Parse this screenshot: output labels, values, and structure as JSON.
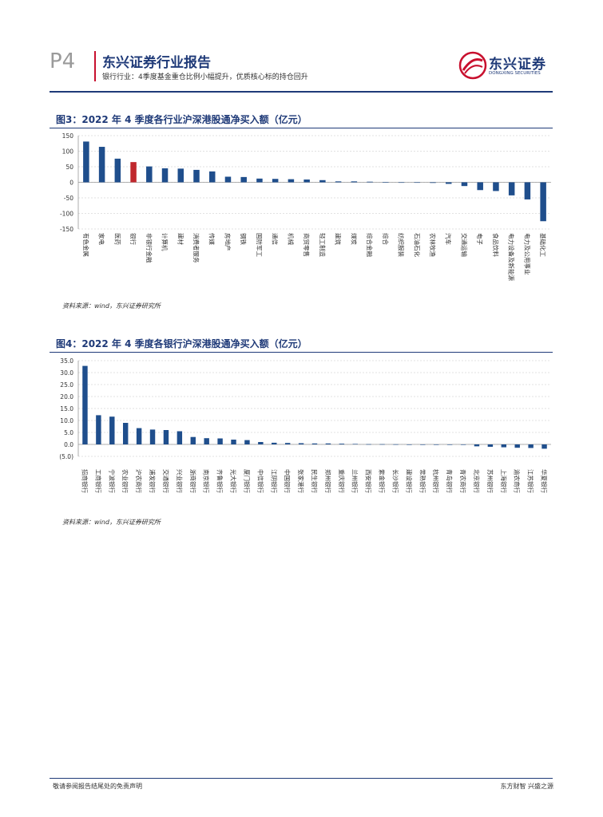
{
  "header": {
    "page_number": "P4",
    "report_title": "东兴证券行业报告",
    "subtitle": "银行行业：4季度基金重仓比例小幅提升，优质核心标的持仓回升",
    "logo_name": "东兴证券",
    "logo_en": "DONGXING SECURITIES"
  },
  "figure3": {
    "title": "图3：2022 年 4 季度各行业沪深港股通净买入额（亿元）",
    "source": "资料来源：wind，东兴证券研究所"
  },
  "figure4": {
    "title": "图4：2022 年 4 季度各银行沪深港股通净买入额（亿元）",
    "source": "资料来源：wind，东兴证券研究所"
  },
  "footer": {
    "left": "敬请参阅报告结尾处的免责声明",
    "right": "东方财智 兴盛之源"
  },
  "colors": {
    "bar": "#1f4e8c",
    "highlight": "#c0282d",
    "brand": "#1f3a78"
  },
  "chart_data": [
    {
      "type": "bar",
      "title": "2022 年 4 季度各行业沪深港股通净买入额（亿元）",
      "ylim": [
        -150,
        150
      ],
      "yticks": [
        -150,
        -100,
        -50,
        0,
        50,
        100,
        150
      ],
      "ytick_labels": [
        "-150",
        "-100",
        "-50",
        "0",
        "50",
        "100",
        "150"
      ],
      "highlight_category": "银行",
      "categories": [
        "有色金属",
        "家电",
        "医药",
        "银行",
        "非银行金融",
        "计算机",
        "建材",
        "消费者服务",
        "传媒",
        "房地产",
        "钢铁",
        "国防军工",
        "通信",
        "机械",
        "商贸零售",
        "轻工制造",
        "建筑",
        "煤炭",
        "综合金融",
        "综合",
        "纺织服装",
        "石油石化",
        "农林牧渔",
        "汽车",
        "交通运输",
        "电子",
        "食品饮料",
        "电力设备及新能源",
        "电力及公用事业",
        "基础化工"
      ],
      "values": [
        131,
        114,
        76,
        65,
        51,
        45,
        44,
        40,
        35,
        18,
        17,
        12,
        11,
        10,
        9,
        7,
        3,
        3,
        2,
        1,
        0,
        -1,
        -2,
        -5,
        -12,
        -25,
        -28,
        -42,
        -55,
        -125
      ]
    },
    {
      "type": "bar",
      "title": "2022 年 4 季度各银行沪深港股通净买入额（亿元）",
      "ylim": [
        -5,
        35
      ],
      "yticks": [
        -5,
        0,
        5,
        10,
        15,
        20,
        25,
        30,
        35
      ],
      "ytick_labels": [
        "(5.0)",
        "0.0",
        "5.0",
        "10.0",
        "15.0",
        "20.0",
        "25.0",
        "30.0",
        "35.0"
      ],
      "categories": [
        "招商银行",
        "工商银行",
        "宁波银行",
        "农业银行",
        "沪农商行",
        "浦发银行",
        "交通银行",
        "兴业银行",
        "浙商银行",
        "南京银行",
        "齐鲁银行",
        "光大银行",
        "厦门银行",
        "中信银行",
        "江阴银行",
        "中国银行",
        "张家港行",
        "民生银行",
        "郑州银行",
        "重庆银行",
        "兰州银行",
        "西安银行",
        "紫金银行",
        "长沙银行",
        "建设银行",
        "常熟银行",
        "杭州银行",
        "青岛银行",
        "青农商行",
        "北京银行",
        "苏州银行",
        "上海银行",
        "渝农商行",
        "江苏银行",
        "华夏银行"
      ],
      "values": [
        32.8,
        12.2,
        11.6,
        9.0,
        6.8,
        6.2,
        6.0,
        5.5,
        3.1,
        2.6,
        2.5,
        2.0,
        1.8,
        1.0,
        0.7,
        0.6,
        0.5,
        0.4,
        0.4,
        0.3,
        0.2,
        0.1,
        0.1,
        0.05,
        0.0,
        0.0,
        -0.05,
        -0.1,
        -0.1,
        -0.8,
        -1.0,
        -1.2,
        -1.4,
        -1.5,
        -1.8
      ]
    }
  ]
}
